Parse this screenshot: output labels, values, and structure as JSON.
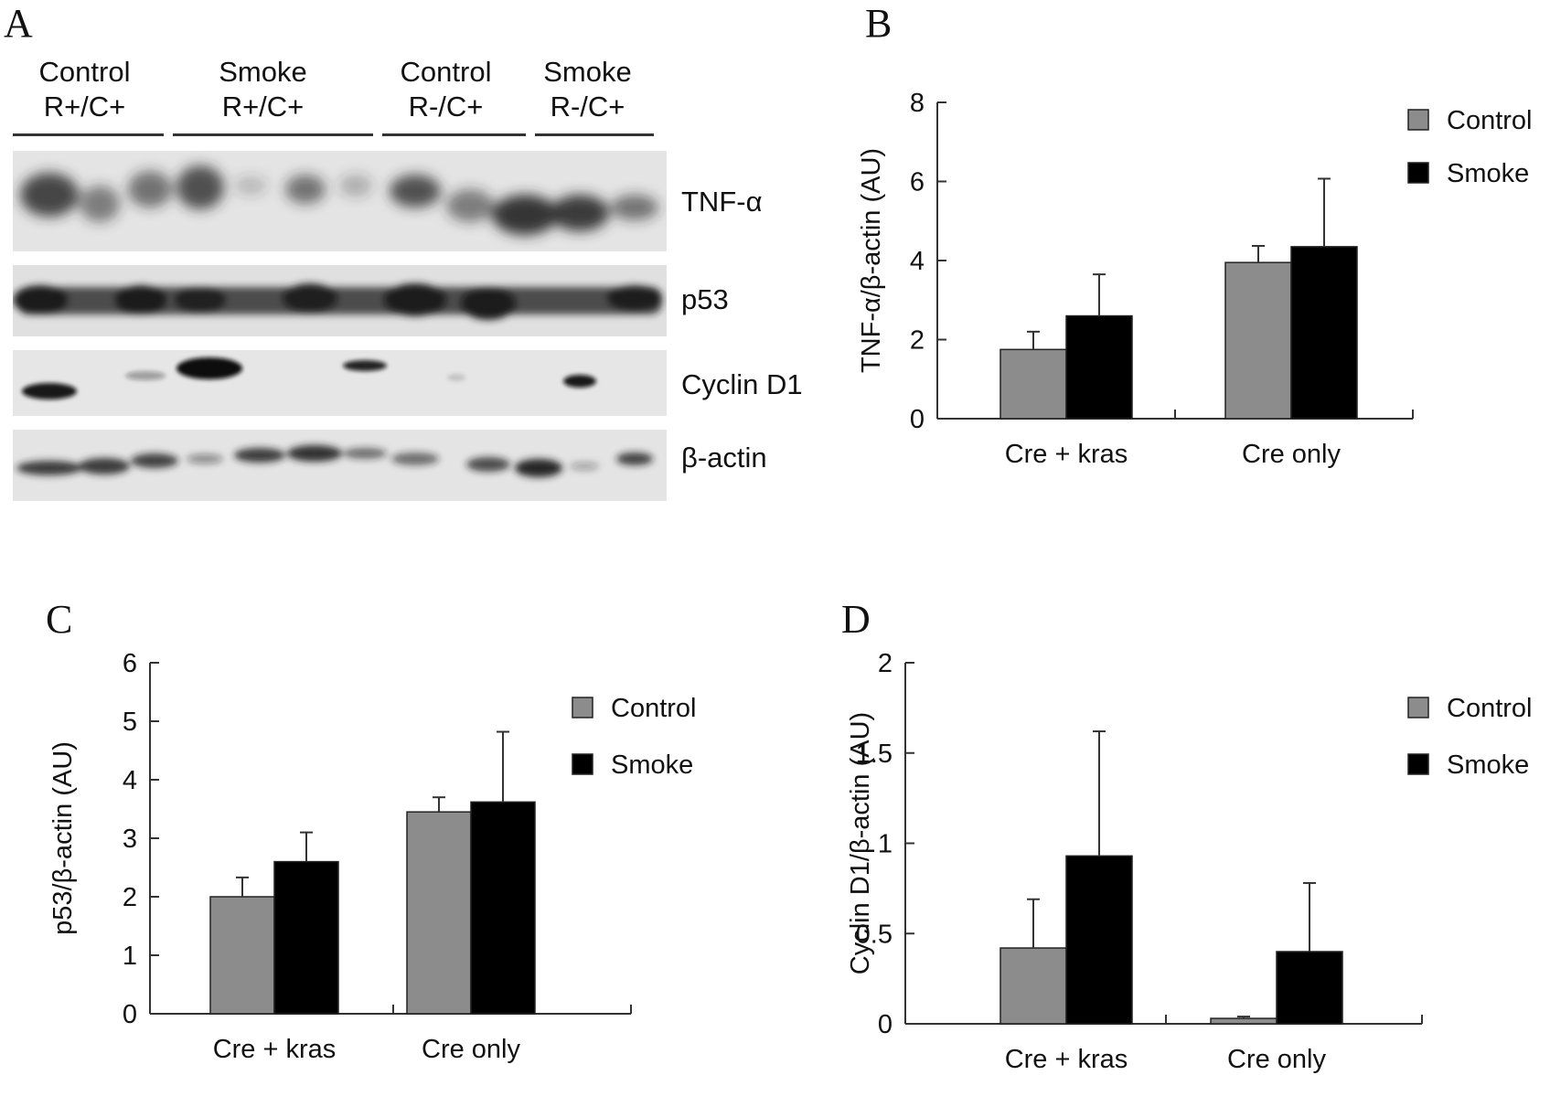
{
  "panels": {
    "a": "A",
    "b": "B",
    "c": "C",
    "d": "D"
  },
  "blot": {
    "groups": [
      {
        "line1": "Control",
        "line2": "R+/C+"
      },
      {
        "line1": "Smoke",
        "line2": "R+/C+"
      },
      {
        "line1": "Control",
        "line2": "R-/C+"
      },
      {
        "line1": "Smoke",
        "line2": "R-/C+"
      }
    ],
    "bands": [
      "TNF-α",
      "p53",
      "Cyclin D1",
      "β-actin"
    ]
  },
  "colors": {
    "control": "#8c8c8c",
    "smoke": "#000000"
  },
  "chart_data": [
    {
      "panel": "B",
      "type": "bar",
      "categories": [
        "Cre + kras",
        "Cre only"
      ],
      "series": [
        {
          "name": "Control",
          "values": [
            1.75,
            3.95
          ],
          "errors": [
            0.45,
            0.42
          ]
        },
        {
          "name": "Smoke",
          "values": [
            2.6,
            4.35
          ],
          "errors": [
            1.05,
            1.72
          ]
        }
      ],
      "ylabel": "TNF-α/β-actin (AU)",
      "ylim": [
        0,
        8
      ],
      "yticks": [
        "0",
        "2",
        "4",
        "6",
        "8"
      ],
      "legend": "top-right",
      "grid": false
    },
    {
      "panel": "C",
      "type": "bar",
      "categories": [
        "Cre + kras",
        "Cre only"
      ],
      "series": [
        {
          "name": "Control",
          "values": [
            2.0,
            3.45
          ],
          "errors": [
            0.33,
            0.25
          ]
        },
        {
          "name": "Smoke",
          "values": [
            2.6,
            3.62
          ],
          "errors": [
            0.5,
            1.2
          ]
        }
      ],
      "ylabel": "p53/β-actin (AU)",
      "ylim": [
        0,
        6
      ],
      "yticks": [
        "0",
        "1",
        "2",
        "3",
        "4",
        "5",
        "6"
      ],
      "legend": "top-right",
      "grid": false
    },
    {
      "panel": "D",
      "type": "bar",
      "categories": [
        "Cre + kras",
        "Cre only"
      ],
      "series": [
        {
          "name": "Control",
          "values": [
            0.42,
            0.03
          ],
          "errors": [
            0.27,
            0.01
          ]
        },
        {
          "name": "Smoke",
          "values": [
            0.93,
            0.4
          ],
          "errors": [
            0.69,
            0.38
          ]
        }
      ],
      "ylabel": "Cyclin D1/β-actin (AU)",
      "ylim": [
        0,
        2
      ],
      "yticks": [
        "0",
        "0.5",
        "1",
        "1.5",
        "2"
      ],
      "legend": "top-right",
      "grid": false
    }
  ]
}
